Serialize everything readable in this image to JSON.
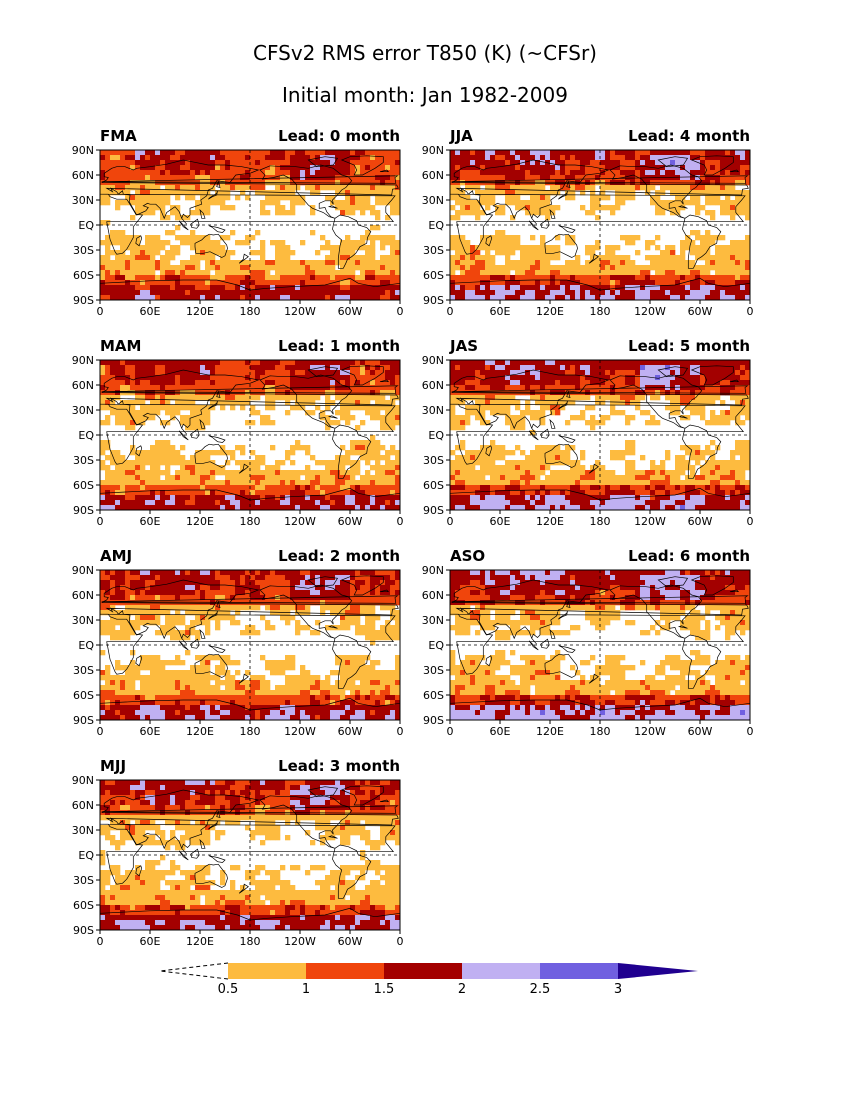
{
  "title": {
    "line1": "CFSv2 RMS error T850 (K) (~CFSr)",
    "line2": "Initial month: Jan 1982-2009"
  },
  "axis_ticks": {
    "lat": [
      "90N",
      "60N",
      "30N",
      "EQ",
      "30S",
      "60S",
      "90S"
    ],
    "lon": [
      "0",
      "60E",
      "120E",
      "180",
      "120W",
      "60W",
      "0"
    ]
  },
  "panels": [
    {
      "season": "FMA",
      "lead": "Lead: 0 month",
      "lead_months": 0
    },
    {
      "season": "MAM",
      "lead": "Lead: 1 month",
      "lead_months": 1
    },
    {
      "season": "AMJ",
      "lead": "Lead: 2 month",
      "lead_months": 2
    },
    {
      "season": "MJJ",
      "lead": "Lead: 3 month",
      "lead_months": 3
    },
    {
      "season": "JJA",
      "lead": "Lead: 4 month",
      "lead_months": 4
    },
    {
      "season": "JAS",
      "lead": "Lead: 5 month",
      "lead_months": 5
    },
    {
      "season": "ASO",
      "lead": "Lead: 6 month",
      "lead_months": 6
    }
  ],
  "colorbar": {
    "levels": [
      "0.5",
      "1",
      "1.5",
      "2",
      "2.5",
      "3"
    ],
    "colors": [
      "#ffffff",
      "#fdbb3f",
      "#f0450c",
      "#a30000",
      "#c0b0f2",
      "#7060e0",
      "#200090"
    ]
  },
  "map_style": {
    "background_color": "#ffffff",
    "coastline_color": "#000000",
    "grid_line_style": "dashed",
    "grid_lines": [
      "EQ",
      "180"
    ]
  }
}
